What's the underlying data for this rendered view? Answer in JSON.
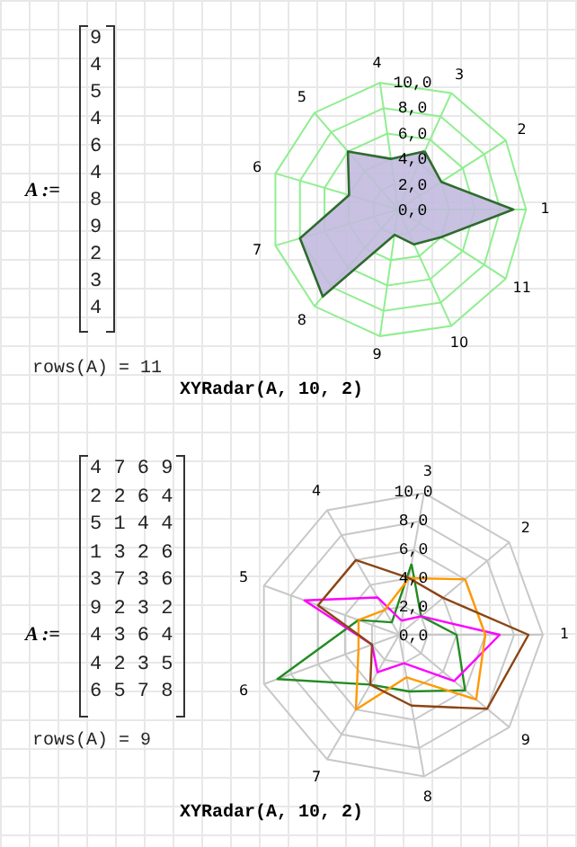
{
  "chart_data": [
    {
      "type": "radar",
      "title": "XYRadar(A, 10, 2)",
      "annotations": [
        "A :=",
        "9",
        "4",
        "5",
        "4",
        "6",
        "4",
        "8",
        "9",
        "2",
        "3",
        "4",
        "rows(A) = 11"
      ],
      "categories": [
        "3",
        "2",
        "1",
        "11",
        "10",
        "9",
        "8",
        "7",
        "6",
        "5",
        "4"
      ],
      "ylim": [
        0,
        10
      ],
      "yticks": [
        {
          "value": 0,
          "label": "0,0"
        },
        {
          "value": 2,
          "label": "2,0"
        },
        {
          "value": 4,
          "label": "4,0"
        },
        {
          "value": 6,
          "label": "6,0"
        },
        {
          "value": 8,
          "label": "8,0"
        },
        {
          "value": 10,
          "label": "10,0"
        }
      ],
      "grid": true,
      "series": [
        {
          "type": "area",
          "color": "#c2bade",
          "values": [
            5,
            4,
            9,
            4,
            3,
            2,
            9,
            8,
            4,
            6,
            4
          ]
        }
      ]
    },
    {
      "type": "radar",
      "title": "XYRadar(A, 10, 2)",
      "annotations": [
        "A :=",
        "4 7 6 9",
        "2 2 6 4",
        "5 1 4 4",
        "1 3 2 6",
        "3 7 3 6",
        "9 2 3 2",
        "4 3 6 4",
        "4 2 3 5",
        "6 5 7 8",
        "rows(A) = 9"
      ],
      "categories": [
        "3",
        "2",
        "1",
        "9",
        "8",
        "7",
        "6",
        "5",
        "4"
      ],
      "ylim": [
        0,
        10
      ],
      "yticks": [
        {
          "value": 0,
          "label": "0,0"
        },
        {
          "value": 2,
          "label": "2,0"
        },
        {
          "value": 4,
          "label": "4,0"
        },
        {
          "value": 6,
          "label": "6,0"
        },
        {
          "value": 8,
          "label": "8,0"
        },
        {
          "value": 10,
          "label": "10,0"
        }
      ],
      "grid": true,
      "series": [
        {
          "color": "#228b22",
          "values": [
            5,
            2,
            4,
            6,
            4,
            4,
            9,
            3,
            1
          ]
        },
        {
          "color": "#ff00ff",
          "values": [
            1,
            2,
            7,
            5,
            2,
            3,
            2,
            7,
            3
          ]
        },
        {
          "color": "#ff9900",
          "values": [
            4,
            6,
            6,
            7,
            3,
            6,
            3,
            3,
            2
          ]
        },
        {
          "color": "#8b4513",
          "values": [
            4,
            4,
            9,
            8,
            5,
            4,
            2,
            6,
            6
          ]
        }
      ]
    }
  ]
}
